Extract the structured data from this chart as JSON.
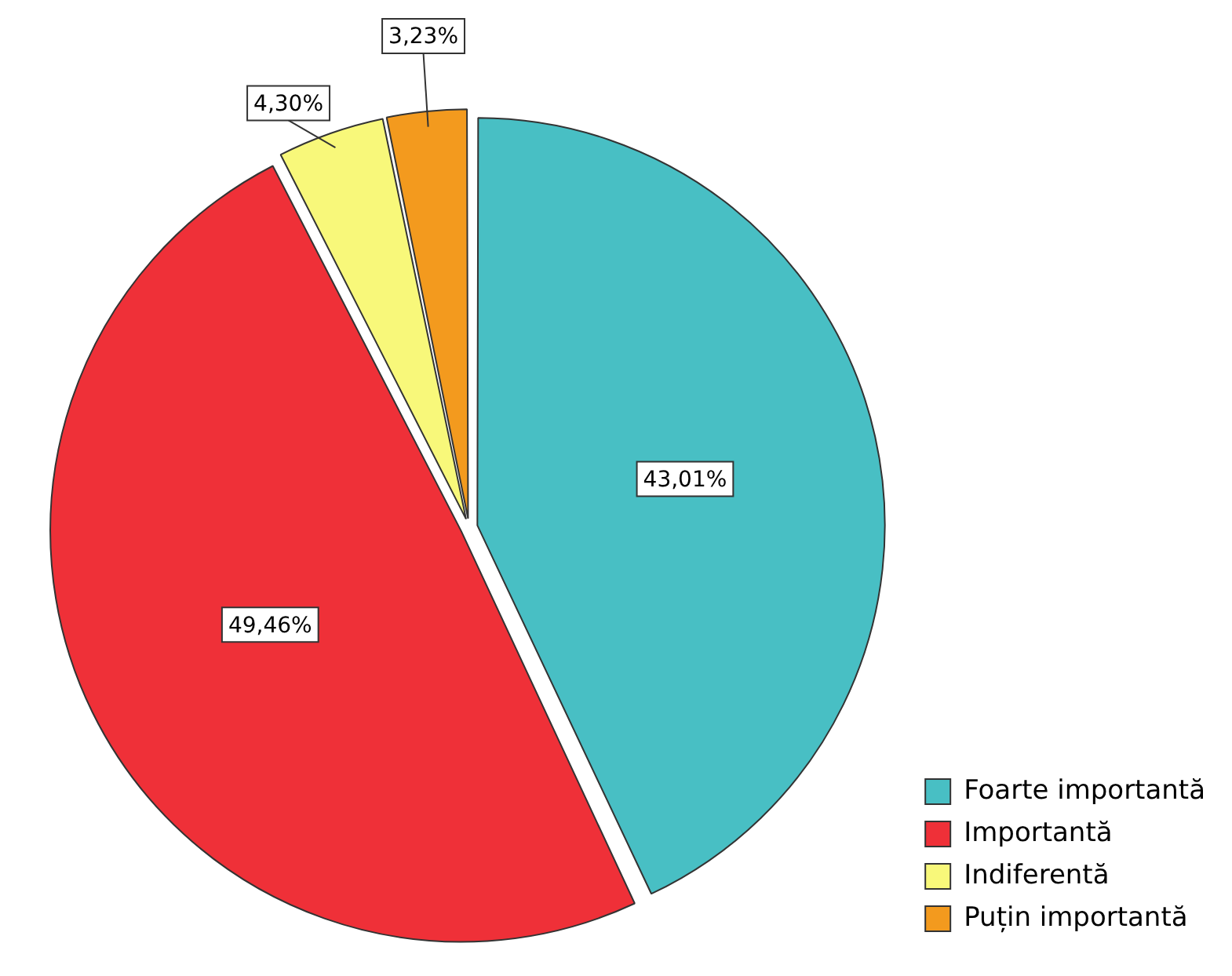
{
  "chart_data": {
    "type": "pie",
    "categories": [
      "Foarte importantă",
      "Importantă",
      "Indiferentă",
      "Puțin importantă"
    ],
    "values": [
      43.01,
      49.46,
      4.3,
      3.23
    ],
    "colors": [
      "#48bfc4",
      "#ef3038",
      "#f8f87a",
      "#f39a1e"
    ],
    "value_labels": [
      "43,01%",
      "49,46%",
      "4,30%",
      "3,23%"
    ],
    "legend": "bottom right"
  }
}
